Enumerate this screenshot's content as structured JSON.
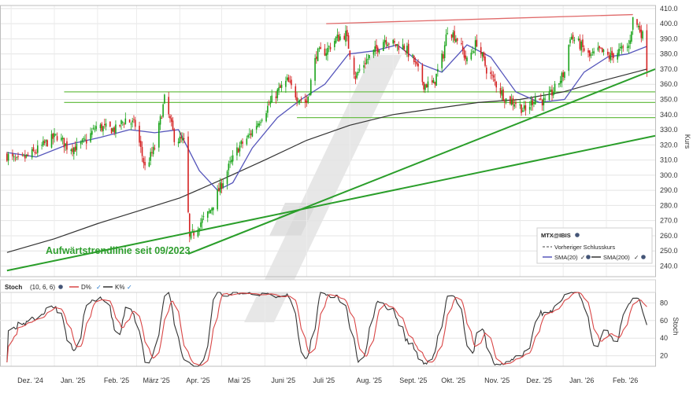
{
  "colors": {
    "up": "#19a319",
    "down": "#d42020",
    "sma20": "#5555bb",
    "sma200": "#333333",
    "trend": "#2a9e2a",
    "resistance": "#e06a6a",
    "support": "#6cbf4a",
    "stoch_k": "#333333",
    "stoch_d": "#d94545",
    "annotation": "#2f9e2f",
    "watermark": "#e3e3e3"
  },
  "chart_data": [
    {
      "type": "candlestick",
      "instrument": "MTX@IBIS",
      "ylabel": "Kurs",
      "ylim": [
        233,
        412
      ],
      "yticks": [
        240,
        250,
        260,
        270,
        280,
        290,
        300,
        310,
        320,
        330,
        340,
        350,
        360,
        370,
        380,
        390,
        400,
        410
      ],
      "xticks": [
        "Dez. '24",
        "Jan. '25",
        "Feb. '25",
        "März '25",
        "Apr. '25",
        "Mai '25",
        "Juni '25",
        "Juli '25",
        "Aug. '25",
        "Sept. '25",
        "Okt. '25",
        "Nov. '25",
        "Dez. '25",
        "Jan. '26",
        "Feb. '26"
      ],
      "legend": {
        "title": "MTX@IBIS",
        "items": [
          "Vorheriger Schlusskurs",
          "SMA(20)",
          "SMA(200)"
        ]
      },
      "annotation": "Aufwärtstrendlinie seit 09/2023",
      "close_path": [
        [
          "2024-11-28",
          313
        ],
        [
          "2024-12-05",
          309
        ],
        [
          "2024-12-12",
          312
        ],
        [
          "2024-12-19",
          316
        ],
        [
          "2024-12-27",
          322
        ],
        [
          "2025-01-03",
          326
        ],
        [
          "2025-01-10",
          319
        ],
        [
          "2025-01-17",
          318
        ],
        [
          "2025-01-24",
          323
        ],
        [
          "2025-01-31",
          332
        ],
        [
          "2025-02-07",
          331
        ],
        [
          "2025-02-14",
          330
        ],
        [
          "2025-02-21",
          337
        ],
        [
          "2025-02-28",
          333
        ],
        [
          "2025-03-07",
          305
        ],
        [
          "2025-03-14",
          318
        ],
        [
          "2025-03-21",
          350
        ],
        [
          "2025-03-28",
          325
        ],
        [
          "2025-04-04",
          322
        ],
        [
          "2025-04-08",
          258
        ],
        [
          "2025-04-15",
          268
        ],
        [
          "2025-04-22",
          275
        ],
        [
          "2025-04-29",
          290
        ],
        [
          "2025-05-06",
          305
        ],
        [
          "2025-05-13",
          318
        ],
        [
          "2025-05-20",
          325
        ],
        [
          "2025-05-27",
          335
        ],
        [
          "2025-06-03",
          345
        ],
        [
          "2025-06-10",
          355
        ],
        [
          "2025-06-17",
          362
        ],
        [
          "2025-06-24",
          352
        ],
        [
          "2025-07-01",
          348
        ],
        [
          "2025-07-08",
          380
        ],
        [
          "2025-07-15",
          382
        ],
        [
          "2025-07-22",
          390
        ],
        [
          "2025-07-29",
          393
        ],
        [
          "2025-08-05",
          365
        ],
        [
          "2025-08-12",
          375
        ],
        [
          "2025-08-19",
          382
        ],
        [
          "2025-08-26",
          390
        ],
        [
          "2025-09-02",
          386
        ],
        [
          "2025-09-09",
          385
        ],
        [
          "2025-09-16",
          375
        ],
        [
          "2025-09-23",
          360
        ],
        [
          "2025-09-30",
          360
        ],
        [
          "2025-10-07",
          380
        ],
        [
          "2025-10-10",
          397
        ],
        [
          "2025-10-17",
          390
        ],
        [
          "2025-10-24",
          375
        ],
        [
          "2025-10-31",
          388
        ],
        [
          "2025-11-07",
          370
        ],
        [
          "2025-11-14",
          360
        ],
        [
          "2025-11-21",
          350
        ],
        [
          "2025-11-28",
          348
        ],
        [
          "2025-12-05",
          342
        ],
        [
          "2025-12-12",
          352
        ],
        [
          "2025-12-19",
          348
        ],
        [
          "2025-12-26",
          357
        ],
        [
          "2026-01-02",
          368
        ],
        [
          "2026-01-06",
          392
        ],
        [
          "2026-01-13",
          386
        ],
        [
          "2026-01-20",
          378
        ],
        [
          "2026-01-27",
          382
        ],
        [
          "2026-02-03",
          378
        ],
        [
          "2026-02-10",
          382
        ],
        [
          "2026-02-17",
          385
        ],
        [
          "2026-02-20",
          403
        ],
        [
          "2026-02-24",
          398
        ],
        [
          "2026-02-27",
          392
        ],
        [
          "2026-03-02",
          372
        ]
      ],
      "sma20_path": [
        [
          "2024-11-28",
          315
        ],
        [
          "2024-12-19",
          312
        ],
        [
          "2025-01-10",
          320
        ],
        [
          "2025-02-03",
          325
        ],
        [
          "2025-02-24",
          330
        ],
        [
          "2025-03-14",
          328
        ],
        [
          "2025-03-31",
          330
        ],
        [
          "2025-04-15",
          303
        ],
        [
          "2025-04-28",
          290
        ],
        [
          "2025-05-09",
          295
        ],
        [
          "2025-05-23",
          318
        ],
        [
          "2025-06-10",
          338
        ],
        [
          "2025-06-27",
          350
        ],
        [
          "2025-07-14",
          360
        ],
        [
          "2025-07-31",
          380
        ],
        [
          "2025-08-18",
          382
        ],
        [
          "2025-09-04",
          386
        ],
        [
          "2025-09-22",
          373
        ],
        [
          "2025-10-06",
          368
        ],
        [
          "2025-10-24",
          386
        ],
        [
          "2025-11-10",
          378
        ],
        [
          "2025-11-28",
          355
        ],
        [
          "2025-12-15",
          348
        ],
        [
          "2026-01-02",
          350
        ],
        [
          "2026-01-16",
          368
        ],
        [
          "2026-02-02",
          378
        ],
        [
          "2026-02-16",
          380
        ],
        [
          "2026-03-02",
          385
        ]
      ],
      "sma200_path": [
        [
          "2024-11-28",
          249
        ],
        [
          "2025-01-01",
          258
        ],
        [
          "2025-02-01",
          268
        ],
        [
          "2025-03-01",
          276
        ],
        [
          "2025-04-01",
          285
        ],
        [
          "2025-05-01",
          297
        ],
        [
          "2025-06-01",
          310
        ],
        [
          "2025-07-01",
          323
        ],
        [
          "2025-08-01",
          333
        ],
        [
          "2025-09-01",
          340
        ],
        [
          "2025-10-01",
          344
        ],
        [
          "2025-11-01",
          348
        ],
        [
          "2025-12-01",
          350
        ],
        [
          "2026-01-01",
          355
        ],
        [
          "2026-02-01",
          363
        ],
        [
          "2026-03-02",
          370
        ]
      ],
      "trendlines": [
        {
          "kind": "uptrend",
          "from": [
            "2024-11-28",
            237
          ],
          "to": [
            "2026-03-08",
            326
          ]
        },
        {
          "kind": "uptrend",
          "from": [
            "2025-04-07",
            248
          ],
          "to": [
            "2026-03-08",
            370
          ]
        },
        {
          "kind": "resistance",
          "from": [
            "2025-07-15",
            400
          ],
          "to": [
            "2026-02-20",
            406
          ]
        }
      ],
      "support_levels": [
        {
          "value": 355,
          "from": "2025-01-08",
          "to": "2026-03-08"
        },
        {
          "value": 348,
          "from": "2025-01-08",
          "to": "2026-03-08"
        },
        {
          "value": 338,
          "from": "2025-06-24",
          "to": "2026-03-08"
        }
      ]
    },
    {
      "type": "line",
      "title": "Stoch",
      "params": "(10, 6, 6)",
      "ylabel": "Stoch",
      "ylim": [
        8,
        92
      ],
      "yticks": [
        20,
        40,
        60,
        80
      ],
      "series": [
        {
          "name": "D%"
        },
        {
          "name": "K%"
        }
      ]
    }
  ]
}
